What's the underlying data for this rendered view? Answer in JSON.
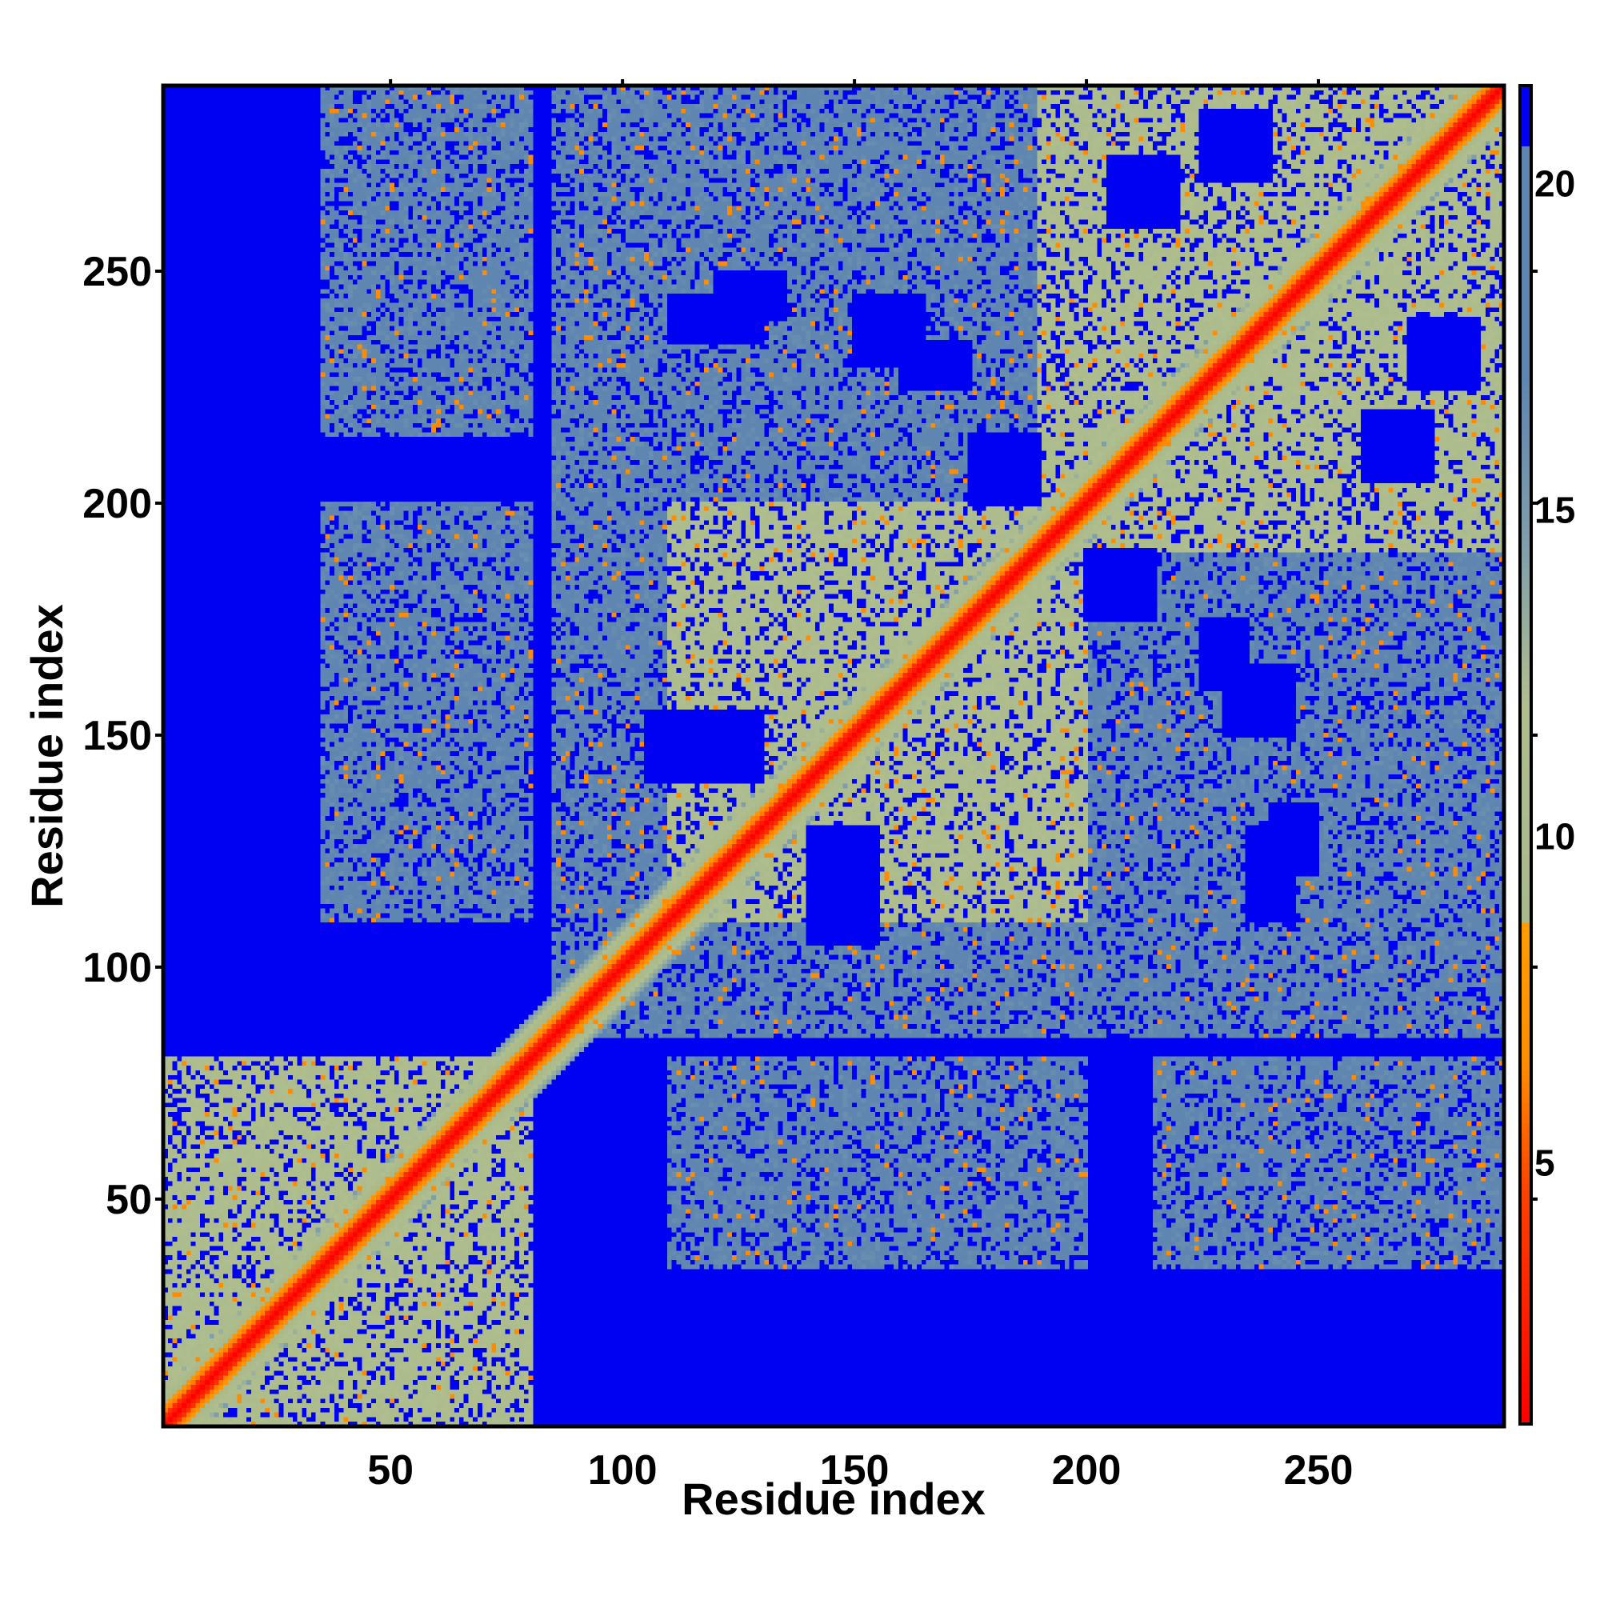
{
  "chart_data": {
    "type": "heatmap",
    "title": "",
    "xlabel": "Residue index",
    "ylabel": "Residue index",
    "n_residues": 290,
    "xlim": [
      1,
      290
    ],
    "ylim": [
      1,
      290
    ],
    "x_ticks": [
      50,
      100,
      150,
      200,
      250
    ],
    "y_ticks": [
      50,
      100,
      150,
      200,
      250
    ],
    "colorbar": {
      "ticks": [
        5,
        10,
        15,
        20
      ],
      "range": [
        1,
        21.5
      ],
      "colors": {
        "close": "#ff0000",
        "near": "#ff8c00",
        "mid": "#b3c38c",
        "far": "#5f86b0",
        "background": "#0000f2"
      },
      "stops": [
        {
          "value": 1,
          "color": "#ff0000"
        },
        {
          "value": 4.5,
          "color": "#ff4000"
        },
        {
          "value": 6.5,
          "color": "#ff8c00"
        },
        {
          "value": 8.7,
          "color": "#ff9e00"
        },
        {
          "value": 8.7,
          "color": "#a8b98a"
        },
        {
          "value": 12,
          "color": "#b0be8e"
        },
        {
          "value": 14.5,
          "color": "#7f9eab"
        },
        {
          "value": 17,
          "color": "#5f86b0"
        },
        {
          "value": 20.6,
          "color": "#5f86b0"
        },
        {
          "value": 20.6,
          "color": "#0000f2"
        },
        {
          "value": 21.5,
          "color": "#0000f2"
        }
      ]
    },
    "diagonal_band": {
      "core_width": 2.2,
      "halo_width": 9
    },
    "contact_regions": [
      {
        "i": [
          1,
          80
        ],
        "j": [
          1,
          80
        ],
        "level": "mid"
      },
      {
        "i": [
          35,
          80
        ],
        "j": [
          110,
          200
        ],
        "level": "far"
      },
      {
        "i": [
          35,
          80
        ],
        "j": [
          215,
          290
        ],
        "level": "far"
      },
      {
        "i": [
          85,
          290
        ],
        "j": [
          85,
          290
        ],
        "level": "far"
      },
      {
        "i": [
          110,
          200
        ],
        "j": [
          110,
          200
        ],
        "level": "mid"
      },
      {
        "i": [
          190,
          290
        ],
        "j": [
          190,
          290
        ],
        "level": "mid"
      }
    ],
    "contact_holes": [
      {
        "i": [
          235,
          245
        ],
        "j": [
          110,
          130
        ]
      },
      {
        "i": [
          225,
          235
        ],
        "j": [
          160,
          175
        ]
      },
      {
        "i": [
          205,
          220
        ],
        "j": [
          260,
          275
        ]
      },
      {
        "i": [
          175,
          190
        ],
        "j": [
          200,
          215
        ]
      },
      {
        "i": [
          120,
          135
        ],
        "j": [
          240,
          250
        ]
      },
      {
        "i": [
          225,
          240
        ],
        "j": [
          270,
          285
        ]
      },
      {
        "i": [
          140,
          155
        ],
        "j": [
          115,
          130
        ]
      },
      {
        "i": [
          105,
          120
        ],
        "j": [
          140,
          155
        ]
      },
      {
        "i": [
          150,
          165
        ],
        "j": [
          230,
          245
        ]
      }
    ]
  }
}
